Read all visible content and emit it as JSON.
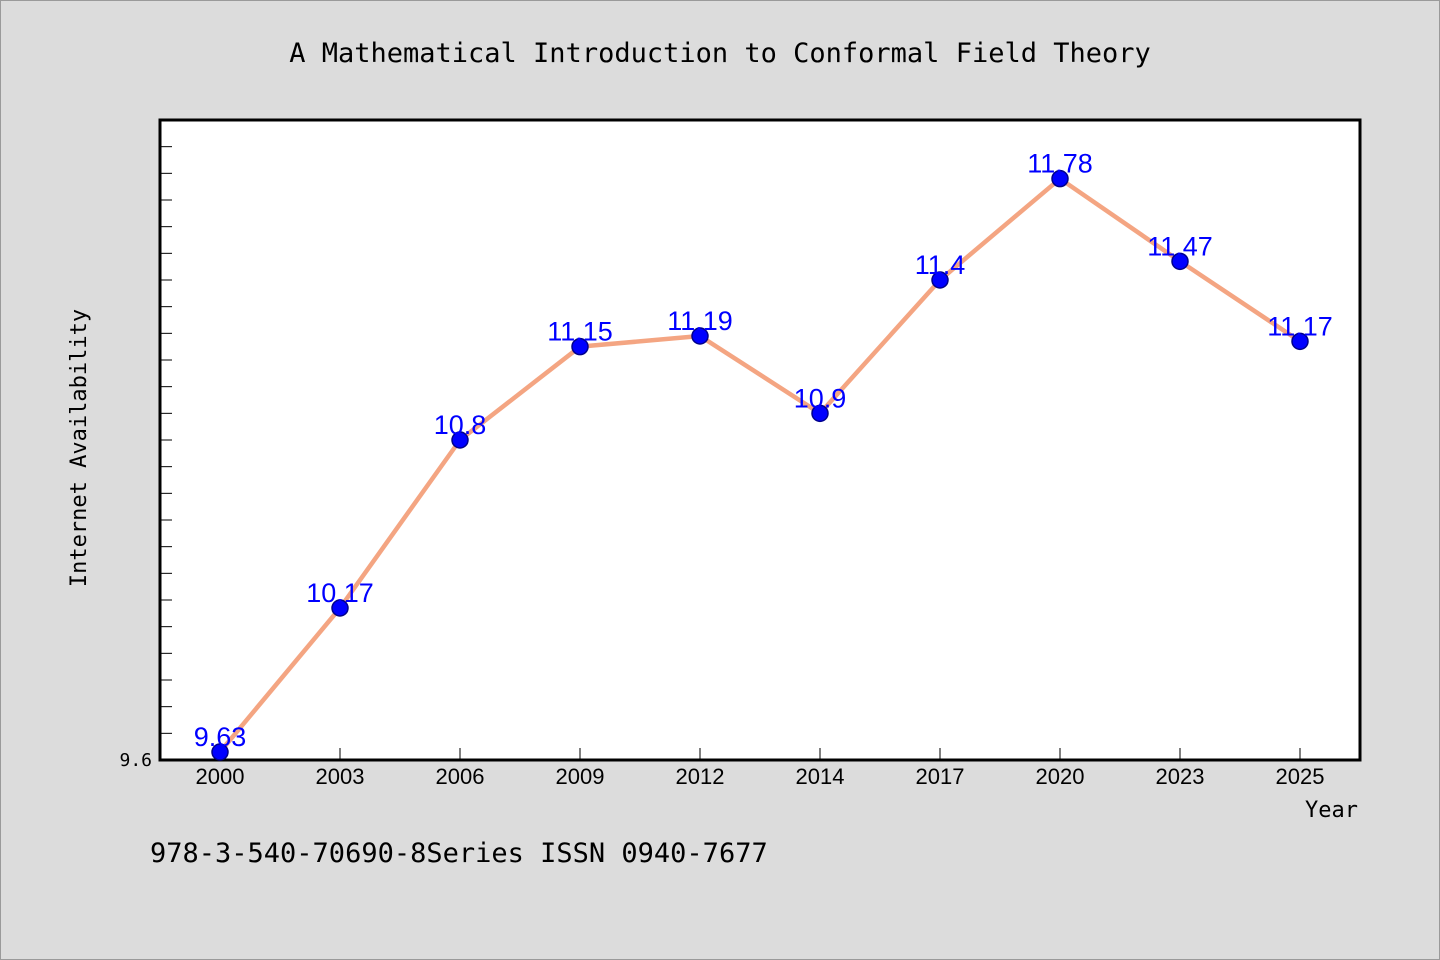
{
  "chart_data": {
    "type": "line",
    "title": "A Mathematical Introduction to Conformal Field Theory",
    "xlabel": "Year",
    "ylabel": "Internet Availability",
    "categories": [
      "2000",
      "2003",
      "2006",
      "2009",
      "2012",
      "2014",
      "2017",
      "2020",
      "2023",
      "2025"
    ],
    "series": [
      {
        "values": [
          9.63,
          10.17,
          10.8,
          11.15,
          11.19,
          10.9,
          11.4,
          11.78,
          11.47,
          11.17
        ],
        "data_labels": [
          "9.63",
          "10.17",
          "10.8",
          "11.15",
          "11.19",
          "10.9",
          "11.4",
          "11.78",
          "11.47",
          "11.17"
        ],
        "line_color": "#f4a582",
        "marker_color": "#0000ff"
      }
    ],
    "ylim": [
      9.6,
      12.0
    ],
    "ytick_labels": [
      "9.6"
    ],
    "y_minor_tick_step": 0.1,
    "grid": false,
    "legend": "none",
    "footer": "978-3-540-70690-8Series ISSN 0940-7677",
    "colors": {
      "background": "#dcdcdc",
      "plot_background": "#ffffff",
      "data_label": "#0000ff"
    }
  }
}
